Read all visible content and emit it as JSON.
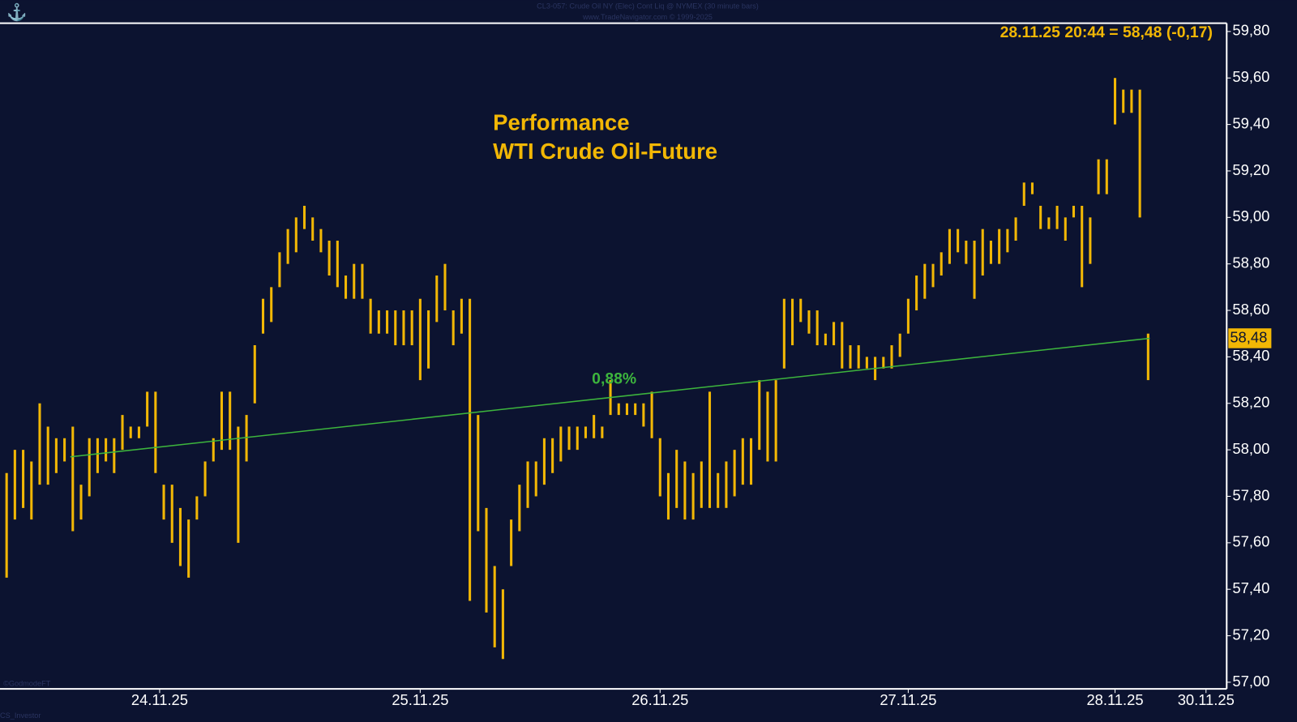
{
  "chart_data": {
    "type": "range-bar",
    "header": [
      "CL3-057: Crude Oil NY (Elec) Cont Liq @ NYMEX (30 minute bars)",
      "www.TradeNavigator.com © 1999-2025"
    ],
    "title": "Performance",
    "subtitle": "WTI Crude Oil-Future",
    "quote": "28.11.25 20:44 = 58,48 (-0,17)",
    "footer": [
      "©GodmodeFT",
      "CS_Investor"
    ],
    "color": "#f2b705",
    "series": [
      {
        "name": "WTI Crude Oil-Future",
        "high": [
          57.9,
          58.0,
          58.0,
          57.95,
          58.2,
          58.1,
          58.05,
          58.05,
          58.1,
          57.85,
          58.05,
          58.05,
          58.05,
          58.05,
          58.15,
          58.1,
          58.1,
          58.25,
          58.25,
          57.85,
          57.85,
          57.75,
          57.7,
          57.8,
          57.95,
          58.05,
          58.25,
          58.25,
          58.1,
          58.15,
          58.45,
          58.65,
          58.7,
          58.85,
          58.95,
          59.0,
          59.05,
          59.0,
          58.95,
          58.9,
          58.9,
          58.75,
          58.8,
          58.8,
          58.65,
          58.6,
          58.6,
          58.6,
          58.6,
          58.6,
          58.65,
          58.6,
          58.75,
          58.8,
          58.6,
          58.65,
          58.65,
          58.15,
          57.75,
          57.5,
          57.4,
          57.7,
          57.85,
          57.95,
          57.95,
          58.05,
          58.05,
          58.1,
          58.1,
          58.1,
          58.1,
          58.15,
          58.1,
          58.3,
          58.2,
          58.2,
          58.2,
          58.2,
          58.25,
          58.05,
          57.9,
          58.0,
          57.95,
          57.9,
          57.95,
          58.25,
          57.9,
          57.95,
          58.0,
          58.05,
          58.05,
          58.3,
          58.25,
          58.3,
          58.65,
          58.65,
          58.65,
          58.6,
          58.6,
          58.5,
          58.55,
          58.55,
          58.45,
          58.45,
          58.4,
          58.4,
          58.4,
          58.45,
          58.5,
          58.65,
          58.75,
          58.8,
          58.8,
          58.85,
          58.95,
          58.95,
          58.9,
          58.9,
          58.95,
          58.9,
          58.95,
          58.95,
          59.0,
          59.15,
          59.15,
          59.05,
          59.0,
          59.05,
          59.0,
          59.05,
          59.05,
          59.0,
          59.25,
          59.25,
          59.6,
          59.55,
          59.55,
          59.55,
          58.5
        ],
        "low": [
          57.45,
          57.7,
          57.75,
          57.7,
          57.85,
          57.85,
          57.9,
          57.95,
          57.65,
          57.7,
          57.8,
          57.9,
          57.95,
          57.9,
          58.0,
          58.05,
          58.05,
          58.1,
          57.9,
          57.7,
          57.6,
          57.5,
          57.45,
          57.7,
          57.8,
          57.95,
          58.0,
          58.0,
          57.6,
          57.95,
          58.2,
          58.5,
          58.55,
          58.7,
          58.8,
          58.85,
          58.95,
          58.9,
          58.85,
          58.75,
          58.7,
          58.65,
          58.65,
          58.65,
          58.5,
          58.5,
          58.5,
          58.45,
          58.45,
          58.45,
          58.3,
          58.35,
          58.55,
          58.6,
          58.45,
          58.5,
          57.35,
          57.65,
          57.3,
          57.15,
          57.1,
          57.5,
          57.65,
          57.75,
          57.8,
          57.85,
          57.9,
          57.95,
          58.0,
          58.0,
          58.05,
          58.05,
          58.05,
          58.15,
          58.15,
          58.15,
          58.15,
          58.1,
          58.05,
          57.8,
          57.7,
          57.75,
          57.7,
          57.7,
          57.75,
          57.75,
          57.75,
          57.75,
          57.8,
          57.85,
          57.85,
          58.0,
          57.95,
          57.95,
          58.35,
          58.45,
          58.55,
          58.5,
          58.45,
          58.45,
          58.45,
          58.35,
          58.35,
          58.35,
          58.35,
          58.3,
          58.35,
          58.35,
          58.4,
          58.5,
          58.6,
          58.65,
          58.7,
          58.75,
          58.8,
          58.85,
          58.8,
          58.65,
          58.75,
          58.8,
          58.8,
          58.85,
          58.9,
          59.05,
          59.1,
          58.95,
          58.95,
          58.95,
          58.9,
          59.0,
          58.7,
          58.8,
          59.1,
          59.1,
          59.4,
          59.45,
          59.45,
          59.0,
          58.3
        ]
      }
    ],
    "xlim": [
      -0.5,
      147.5
    ],
    "xticks": [
      {
        "value": 18.5,
        "label": "24.11.25"
      },
      {
        "value": 50,
        "label": "25.11.25"
      },
      {
        "value": 79,
        "label": "26.11.25"
      },
      {
        "value": 109,
        "label": "27.11.25"
      },
      {
        "value": 134,
        "label": "28.11.25"
      },
      {
        "value": 145,
        "label": "30.11.25"
      }
    ],
    "ylim": [
      57.0,
      59.8
    ],
    "yticks": [
      {
        "value": 57.0,
        "label": "57,00"
      },
      {
        "value": 57.2,
        "label": "57,20"
      },
      {
        "value": 57.4,
        "label": "57,40"
      },
      {
        "value": 57.6,
        "label": "57,60"
      },
      {
        "value": 57.8,
        "label": "57,80"
      },
      {
        "value": 58.0,
        "label": "58,00"
      },
      {
        "value": 58.2,
        "label": "58,20"
      },
      {
        "value": 58.4,
        "label": "58,40"
      },
      {
        "value": 58.6,
        "label": "58,60"
      },
      {
        "value": 58.8,
        "label": "58,80"
      },
      {
        "value": 59.0,
        "label": "59,00"
      },
      {
        "value": 59.2,
        "label": "59,20"
      },
      {
        "value": 59.4,
        "label": "59,40"
      },
      {
        "value": 59.6,
        "label": "59,60"
      },
      {
        "value": 59.8,
        "label": "59,80"
      }
    ],
    "last_price": {
      "value": 58.48,
      "label": "58,48"
    },
    "trend": {
      "label": "0,88%",
      "color": "#3db53d",
      "x": [
        7.7,
        138.2
      ],
      "y": [
        57.97,
        58.48
      ]
    }
  }
}
